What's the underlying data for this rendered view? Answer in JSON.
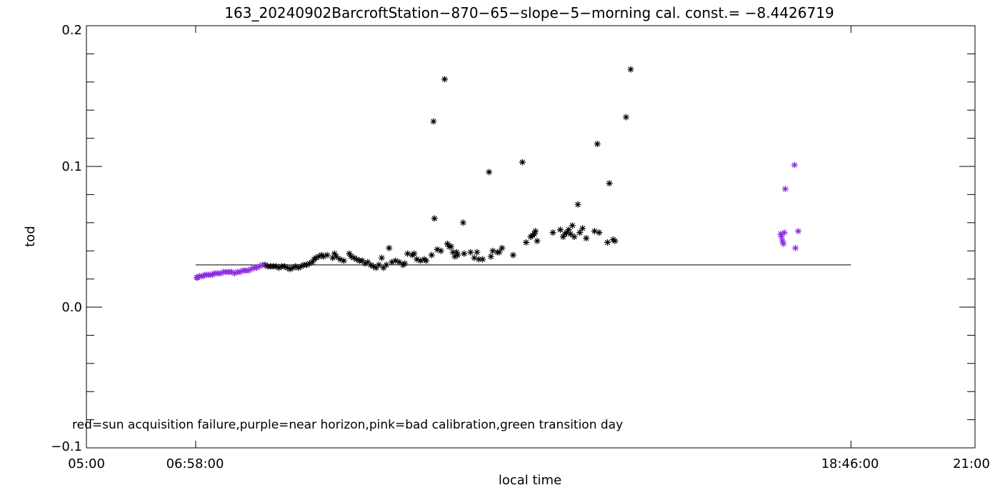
{
  "chart_data": {
    "type": "scatter",
    "title": "163_20240902BarcroftStation−870−65−slope−5−morning cal. const.= −8.4426719",
    "xlabel": "local time",
    "ylabel": "tod",
    "ylim": [
      -0.1,
      0.2
    ],
    "xlim": [
      "05:00",
      "21:00"
    ],
    "x_ticks": [
      "05:00",
      "06:58:00",
      "18:46:00",
      "21:00"
    ],
    "y_ticks": [
      "0.2",
      "0.1",
      "0.0",
      "−0.1"
    ],
    "note": "red=sun acquisition failure,purple=near horizon,pink=bad calibration,green transition day",
    "colors": {
      "normal": "#000000",
      "near_horizon": "#8b2be2",
      "axis": "#000000"
    },
    "reference_line": {
      "x_start": "06:58",
      "x_end": "18:46",
      "y": 0.03
    },
    "near_horizon_points": [
      [
        "06:59",
        0.021
      ],
      [
        "07:00",
        0.021
      ],
      [
        "07:02",
        0.022
      ],
      [
        "07:04",
        0.022
      ],
      [
        "07:06",
        0.022
      ],
      [
        "07:08",
        0.023
      ],
      [
        "07:10",
        0.023
      ],
      [
        "07:12",
        0.023
      ],
      [
        "07:14",
        0.023
      ],
      [
        "07:16",
        0.023
      ],
      [
        "07:18",
        0.024
      ],
      [
        "07:20",
        0.024
      ],
      [
        "07:22",
        0.024
      ],
      [
        "07:25",
        0.024
      ],
      [
        "07:28",
        0.025
      ],
      [
        "07:31",
        0.025
      ],
      [
        "07:34",
        0.025
      ],
      [
        "07:37",
        0.025
      ],
      [
        "07:40",
        0.024
      ],
      [
        "07:43",
        0.025
      ],
      [
        "07:46",
        0.025
      ],
      [
        "07:49",
        0.026
      ],
      [
        "07:52",
        0.026
      ],
      [
        "07:55",
        0.026
      ],
      [
        "07:58",
        0.027
      ],
      [
        "08:01",
        0.028
      ],
      [
        "08:04",
        0.028
      ],
      [
        "08:07",
        0.029
      ],
      [
        "08:10",
        0.03
      ],
      [
        "17:30",
        0.052
      ],
      [
        "17:31",
        0.05
      ],
      [
        "17:32",
        0.047
      ],
      [
        "17:33",
        0.045
      ],
      [
        "17:34",
        0.053
      ],
      [
        "17:35",
        0.084
      ],
      [
        "17:45",
        0.101
      ],
      [
        "17:46",
        0.042
      ],
      [
        "17:49",
        0.054
      ]
    ],
    "normal_points": [
      [
        "08:13",
        0.03
      ],
      [
        "08:16",
        0.029
      ],
      [
        "08:19",
        0.029
      ],
      [
        "08:22",
        0.029
      ],
      [
        "08:25",
        0.029
      ],
      [
        "08:28",
        0.028
      ],
      [
        "08:31",
        0.029
      ],
      [
        "08:34",
        0.029
      ],
      [
        "08:37",
        0.028
      ],
      [
        "08:40",
        0.027
      ],
      [
        "08:43",
        0.028
      ],
      [
        "08:46",
        0.029
      ],
      [
        "08:49",
        0.028
      ],
      [
        "08:52",
        0.029
      ],
      [
        "08:55",
        0.03
      ],
      [
        "08:58",
        0.03
      ],
      [
        "09:01",
        0.031
      ],
      [
        "09:04",
        0.032
      ],
      [
        "09:06",
        0.034
      ],
      [
        "09:08",
        0.035
      ],
      [
        "09:11",
        0.036
      ],
      [
        "09:14",
        0.037
      ],
      [
        "09:16",
        0.036
      ],
      [
        "09:20",
        0.037
      ],
      [
        "09:26",
        0.035
      ],
      [
        "09:28",
        0.038
      ],
      [
        "09:30",
        0.036
      ],
      [
        "09:34",
        0.034
      ],
      [
        "09:38",
        0.033
      ],
      [
        "09:44",
        0.038
      ],
      [
        "09:46",
        0.036
      ],
      [
        "09:49",
        0.035
      ],
      [
        "09:52",
        0.034
      ],
      [
        "09:55",
        0.033
      ],
      [
        "09:58",
        0.033
      ],
      [
        "10:01",
        0.031
      ],
      [
        "10:04",
        0.032
      ],
      [
        "10:07",
        0.03
      ],
      [
        "10:10",
        0.029
      ],
      [
        "10:13",
        0.028
      ],
      [
        "10:16",
        0.03
      ],
      [
        "10:19",
        0.035
      ],
      [
        "10:21",
        0.028
      ],
      [
        "10:24",
        0.03
      ],
      [
        "10:27",
        0.042
      ],
      [
        "10:30",
        0.032
      ],
      [
        "10:34",
        0.033
      ],
      [
        "10:38",
        0.032
      ],
      [
        "10:42",
        0.03
      ],
      [
        "10:44",
        0.031
      ],
      [
        "10:47",
        0.038
      ],
      [
        "10:52",
        0.037
      ],
      [
        "10:54",
        0.038
      ],
      [
        "10:57",
        0.034
      ],
      [
        "11:01",
        0.033
      ],
      [
        "11:05",
        0.034
      ],
      [
        "11:07",
        0.033
      ],
      [
        "11:13",
        0.037
      ],
      [
        "11:15",
        0.132
      ],
      [
        "11:16",
        0.063
      ],
      [
        "11:19",
        0.041
      ],
      [
        "11:23",
        0.04
      ],
      [
        "11:27",
        0.162
      ],
      [
        "11:30",
        0.045
      ],
      [
        "11:32",
        0.043
      ],
      [
        "11:34",
        0.043
      ],
      [
        "11:36",
        0.039
      ],
      [
        "11:38",
        0.036
      ],
      [
        "11:40",
        0.039
      ],
      [
        "11:41",
        0.037
      ],
      [
        "11:47",
        0.06
      ],
      [
        "11:48",
        0.038
      ],
      [
        "11:55",
        0.039
      ],
      [
        "11:59",
        0.035
      ],
      [
        "12:02",
        0.039
      ],
      [
        "12:04",
        0.034
      ],
      [
        "12:08",
        0.034
      ],
      [
        "12:15",
        0.096
      ],
      [
        "12:17",
        0.036
      ],
      [
        "12:19",
        0.04
      ],
      [
        "12:24",
        0.039
      ],
      [
        "12:26",
        0.039
      ],
      [
        "12:29",
        0.042
      ],
      [
        "12:41",
        0.037
      ],
      [
        "12:51",
        0.103
      ],
      [
        "12:55",
        0.046
      ],
      [
        "13:00",
        0.05
      ],
      [
        "13:02",
        0.051
      ],
      [
        "13:04",
        0.052
      ],
      [
        "13:05",
        0.054
      ],
      [
        "13:07",
        0.047
      ],
      [
        "13:24",
        0.053
      ],
      [
        "13:32",
        0.055
      ],
      [
        "13:35",
        0.05
      ],
      [
        "13:37",
        0.052
      ],
      [
        "13:39",
        0.053
      ],
      [
        "13:41",
        0.055
      ],
      [
        "13:43",
        0.052
      ],
      [
        "13:45",
        0.058
      ],
      [
        "13:47",
        0.05
      ],
      [
        "13:51",
        0.073
      ],
      [
        "13:53",
        0.053
      ],
      [
        "13:56",
        0.056
      ],
      [
        "14:00",
        0.049
      ],
      [
        "14:09",
        0.054
      ],
      [
        "14:12",
        0.116
      ],
      [
        "14:14",
        0.053
      ],
      [
        "14:23",
        0.046
      ],
      [
        "14:25",
        0.088
      ],
      [
        "14:29",
        0.048
      ],
      [
        "14:31",
        0.047
      ],
      [
        "14:43",
        0.135
      ],
      [
        "14:48",
        0.169
      ]
    ]
  }
}
